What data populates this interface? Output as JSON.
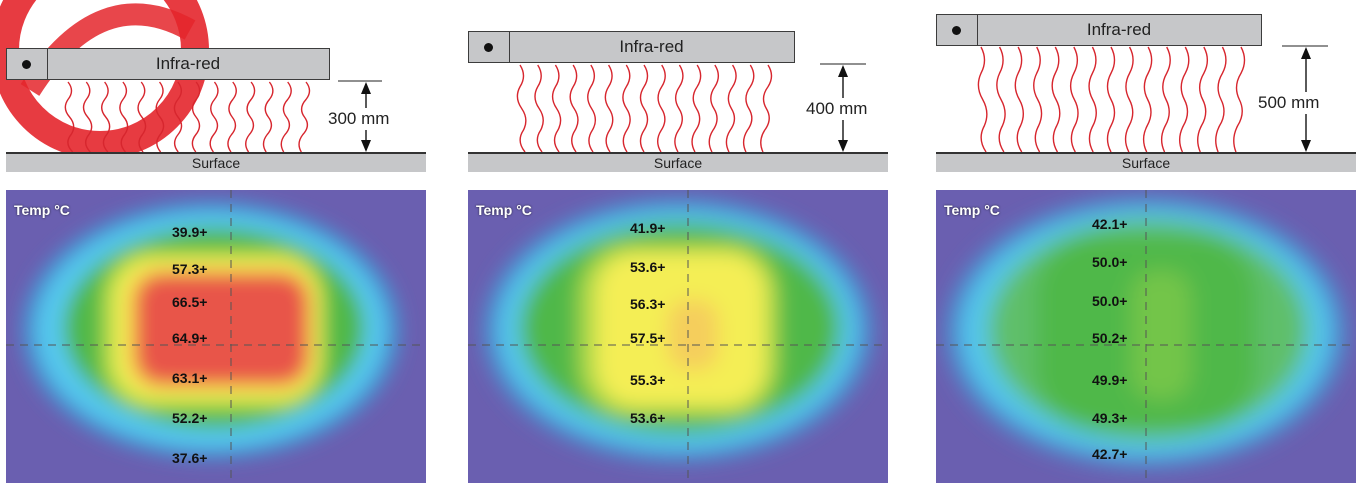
{
  "panels": [
    {
      "heater_label": "Infra-red",
      "surface_label": "Surface",
      "distance_label": "300 mm",
      "thermal": {
        "title": "Temp °C",
        "readings": [
          "39.9+",
          "57.3+",
          "66.5+",
          "64.9+",
          "63.1+",
          "52.2+",
          "37.6+"
        ]
      }
    },
    {
      "heater_label": "Infra-red",
      "surface_label": "Surface",
      "distance_label": "400 mm",
      "thermal": {
        "title": "Temp °C",
        "readings": [
          "41.9+",
          "53.6+",
          "56.3+",
          "57.5+",
          "55.3+",
          "53.6+"
        ]
      }
    },
    {
      "heater_label": "Infra-red",
      "surface_label": "Surface",
      "distance_label": "500 mm",
      "thermal": {
        "title": "Temp °C",
        "readings": [
          "42.1+",
          "50.0+",
          "50.0+",
          "50.2+",
          "49.9+",
          "49.3+",
          "42.7+"
        ]
      }
    }
  ],
  "colors": {
    "heater_fill": "#c6c7c9",
    "wave_red": "#d7262e",
    "stamp_red": "#e4262c",
    "thermal_purple": "#6a5fb0",
    "thermal_blue": "#55c8ee",
    "thermal_green": "#4fb84a",
    "thermal_yellow": "#f4ee55",
    "thermal_red": "#e8544a"
  }
}
